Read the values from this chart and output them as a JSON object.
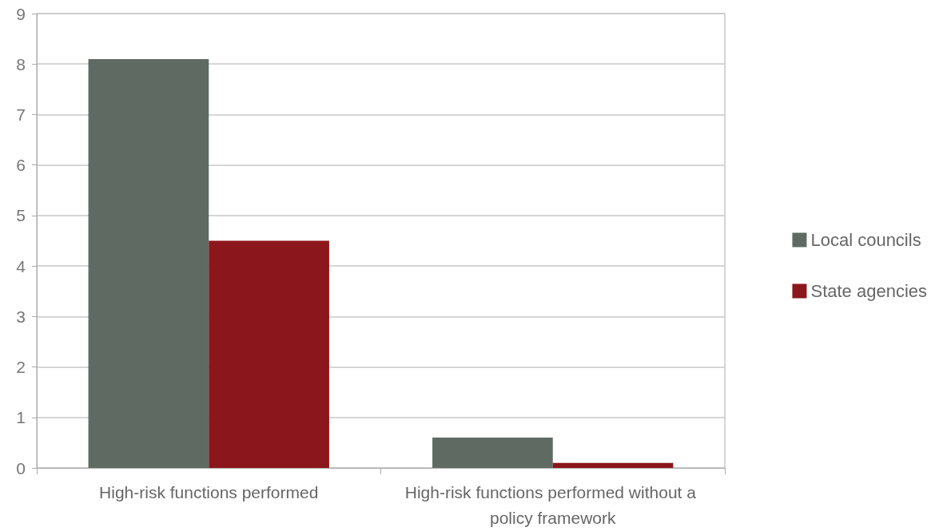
{
  "chart_data": {
    "type": "bar",
    "categories": [
      "High-risk functions performed",
      "High-risk functions performed without a policy framework"
    ],
    "series": [
      {
        "name": "Local councils",
        "color": "#5f6b62",
        "values": [
          8.1,
          0.6
        ]
      },
      {
        "name": "State agencies",
        "color": "#8b161b",
        "values": [
          4.5,
          0.1
        ]
      }
    ],
    "ylim": [
      0,
      9
    ],
    "yticks": [
      0,
      1,
      2,
      3,
      4,
      5,
      6,
      7,
      8,
      9
    ],
    "grid": "y",
    "legend": "right"
  }
}
